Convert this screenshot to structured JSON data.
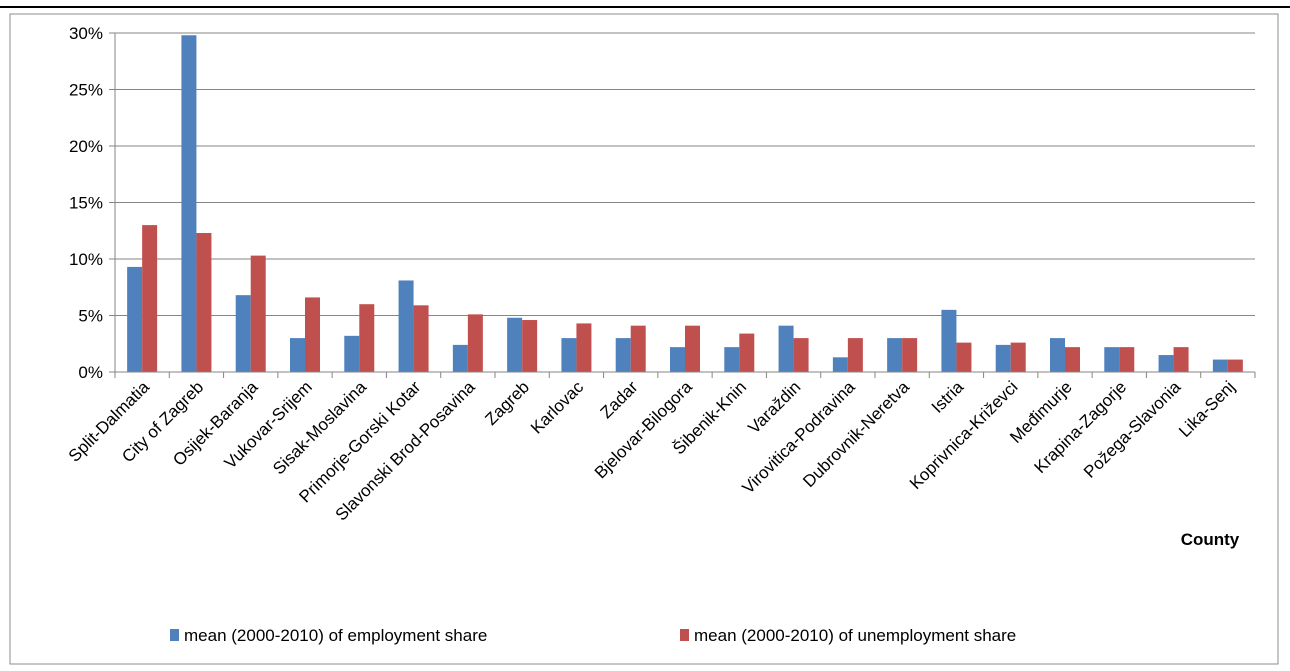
{
  "chart_data": {
    "type": "bar",
    "categories": [
      "Split-Dalmatia",
      "City of Zagreb",
      "Osijek-Baranja",
      "Vukovar-Srijem",
      "Sisak-Moslavina",
      "Primorje-Gorski Kotar",
      "Slavonski Brod-Posavina",
      "Zagreb",
      "Karlovac",
      "Zadar",
      "Bjelovar-Bilogora",
      "Šibenik-Knin",
      "Varaždin",
      "Virovitica-Podravina",
      "Dubrovnik-Neretva",
      "Istria",
      "Koprivnica-Križevci",
      "Međimurje",
      "Krapina-Zagorje",
      "Požega-Slavonia",
      "Lika-Senj"
    ],
    "series": [
      {
        "name": "mean (2000-2010) of employment share",
        "color": "#4f81bd",
        "values": [
          0.093,
          0.298,
          0.068,
          0.03,
          0.032,
          0.081,
          0.024,
          0.048,
          0.03,
          0.03,
          0.022,
          0.022,
          0.041,
          0.013,
          0.03,
          0.055,
          0.024,
          0.03,
          0.022,
          0.015,
          0.011
        ]
      },
      {
        "name": "mean (2000-2010) of unemployment share",
        "color": "#c0504d",
        "values": [
          0.13,
          0.123,
          0.103,
          0.066,
          0.06,
          0.059,
          0.051,
          0.046,
          0.043,
          0.041,
          0.041,
          0.034,
          0.03,
          0.03,
          0.03,
          0.026,
          0.026,
          0.022,
          0.022,
          0.022,
          0.011
        ]
      }
    ],
    "ylim": [
      0,
      0.3
    ],
    "yticks": [
      "0%",
      "5%",
      "10%",
      "15%",
      "20%",
      "25%",
      "30%"
    ],
    "xlabel": "County",
    "ylabel": "",
    "grid": true,
    "legend": "bottom"
  }
}
